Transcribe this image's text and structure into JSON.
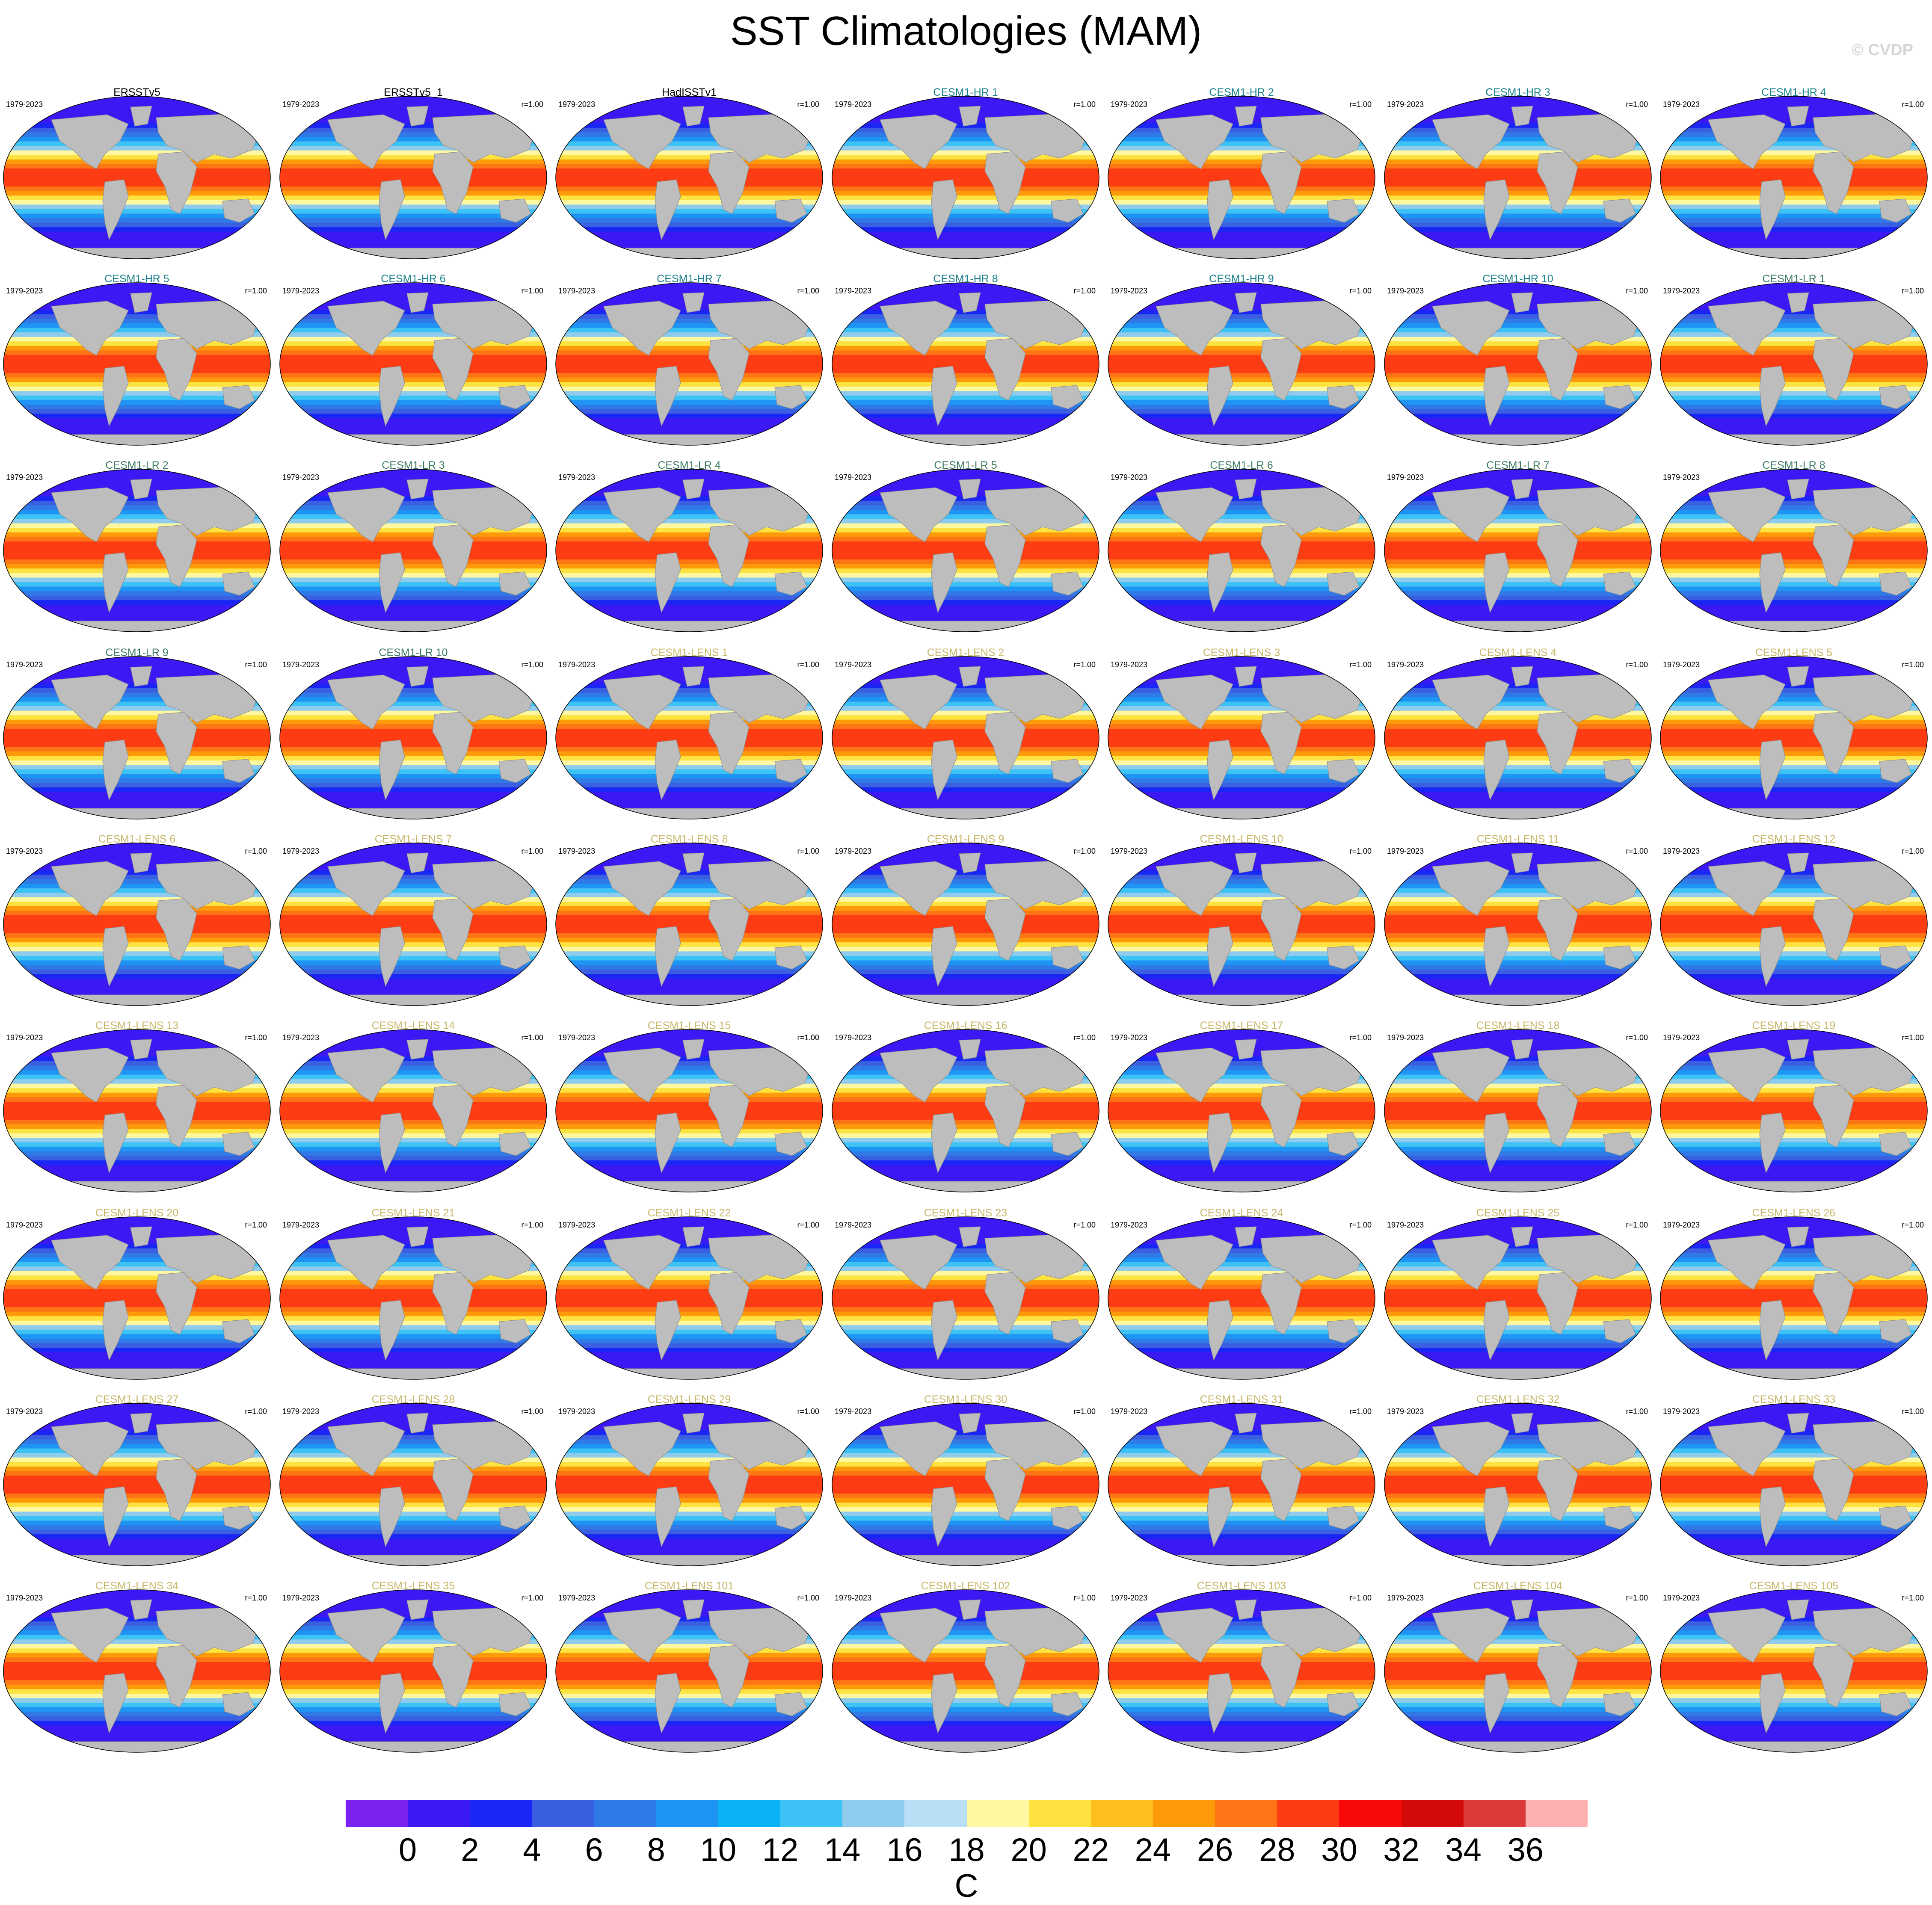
{
  "title": "SST Climatologies (MAM)",
  "credit": "© CVDP",
  "period": "1979-2023",
  "correlation": "r=1.00",
  "title_colors": {
    "observations": "#000000",
    "CESM1-HR": "#1a7f8a",
    "CESM1-LR": "#3d7a66",
    "CESM1-LENS": "#c7b76a"
  },
  "panels": [
    {
      "title": "ERSSTv5",
      "group": "observations",
      "show_r": false
    },
    {
      "title": "ERSSTv5_1",
      "group": "observations",
      "show_r": true
    },
    {
      "title": "HadISSTv1",
      "group": "observations",
      "show_r": true
    },
    {
      "title": "CESM1-HR 1",
      "group": "CESM1-HR",
      "show_r": true
    },
    {
      "title": "CESM1-HR 2",
      "group": "CESM1-HR",
      "show_r": true
    },
    {
      "title": "CESM1-HR 3",
      "group": "CESM1-HR",
      "show_r": true
    },
    {
      "title": "CESM1-HR 4",
      "group": "CESM1-HR",
      "show_r": true
    },
    {
      "title": "CESM1-HR 5",
      "group": "CESM1-HR",
      "show_r": true
    },
    {
      "title": "CESM1-HR 6",
      "group": "CESM1-HR",
      "show_r": true
    },
    {
      "title": "CESM1-HR 7",
      "group": "CESM1-HR",
      "show_r": true
    },
    {
      "title": "CESM1-HR 8",
      "group": "CESM1-HR",
      "show_r": true
    },
    {
      "title": "CESM1-HR 9",
      "group": "CESM1-HR",
      "show_r": true
    },
    {
      "title": "CESM1-HR 10",
      "group": "CESM1-HR",
      "show_r": true
    },
    {
      "title": "CESM1-LR 1",
      "group": "CESM1-LR",
      "show_r": true
    },
    {
      "title": "CESM1-LR 2",
      "group": "CESM1-LR",
      "show_r": false
    },
    {
      "title": "CESM1-LR 3",
      "group": "CESM1-LR",
      "show_r": false
    },
    {
      "title": "CESM1-LR 4",
      "group": "CESM1-LR",
      "show_r": false
    },
    {
      "title": "CESM1-LR 5",
      "group": "CESM1-LR",
      "show_r": false
    },
    {
      "title": "CESM1-LR 6",
      "group": "CESM1-LR",
      "show_r": false
    },
    {
      "title": "CESM1-LR 7",
      "group": "CESM1-LR",
      "show_r": false
    },
    {
      "title": "CESM1-LR 8",
      "group": "CESM1-LR",
      "show_r": false
    },
    {
      "title": "CESM1-LR 9",
      "group": "CESM1-LR",
      "show_r": true
    },
    {
      "title": "CESM1-LR 10",
      "group": "CESM1-LR",
      "show_r": true
    },
    {
      "title": "CESM1-LENS 1",
      "group": "CESM1-LENS",
      "show_r": true
    },
    {
      "title": "CESM1-LENS 2",
      "group": "CESM1-LENS",
      "show_r": true
    },
    {
      "title": "CESM1-LENS 3",
      "group": "CESM1-LENS",
      "show_r": true
    },
    {
      "title": "CESM1-LENS 4",
      "group": "CESM1-LENS",
      "show_r": true
    },
    {
      "title": "CESM1-LENS 5",
      "group": "CESM1-LENS",
      "show_r": true
    },
    {
      "title": "CESM1-LENS 6",
      "group": "CESM1-LENS",
      "show_r": true
    },
    {
      "title": "CESM1-LENS 7",
      "group": "CESM1-LENS",
      "show_r": true
    },
    {
      "title": "CESM1-LENS 8",
      "group": "CESM1-LENS",
      "show_r": true
    },
    {
      "title": "CESM1-LENS 9",
      "group": "CESM1-LENS",
      "show_r": true
    },
    {
      "title": "CESM1-LENS 10",
      "group": "CESM1-LENS",
      "show_r": true
    },
    {
      "title": "CESM1-LENS 11",
      "group": "CESM1-LENS",
      "show_r": true
    },
    {
      "title": "CESM1-LENS 12",
      "group": "CESM1-LENS",
      "show_r": true
    },
    {
      "title": "CESM1-LENS 13",
      "group": "CESM1-LENS",
      "show_r": true
    },
    {
      "title": "CESM1-LENS 14",
      "group": "CESM1-LENS",
      "show_r": true
    },
    {
      "title": "CESM1-LENS 15",
      "group": "CESM1-LENS",
      "show_r": true
    },
    {
      "title": "CESM1-LENS 16",
      "group": "CESM1-LENS",
      "show_r": true
    },
    {
      "title": "CESM1-LENS 17",
      "group": "CESM1-LENS",
      "show_r": true
    },
    {
      "title": "CESM1-LENS 18",
      "group": "CESM1-LENS",
      "show_r": true
    },
    {
      "title": "CESM1-LENS 19",
      "group": "CESM1-LENS",
      "show_r": true
    },
    {
      "title": "CESM1-LENS 20",
      "group": "CESM1-LENS",
      "show_r": true
    },
    {
      "title": "CESM1-LENS 21",
      "group": "CESM1-LENS",
      "show_r": true
    },
    {
      "title": "CESM1-LENS 22",
      "group": "CESM1-LENS",
      "show_r": true
    },
    {
      "title": "CESM1-LENS 23",
      "group": "CESM1-LENS",
      "show_r": true
    },
    {
      "title": "CESM1-LENS 24",
      "group": "CESM1-LENS",
      "show_r": true
    },
    {
      "title": "CESM1-LENS 25",
      "group": "CESM1-LENS",
      "show_r": true
    },
    {
      "title": "CESM1-LENS 26",
      "group": "CESM1-LENS",
      "show_r": true
    },
    {
      "title": "CESM1-LENS 27",
      "group": "CESM1-LENS",
      "show_r": true
    },
    {
      "title": "CESM1-LENS 28",
      "group": "CESM1-LENS",
      "show_r": true
    },
    {
      "title": "CESM1-LENS 29",
      "group": "CESM1-LENS",
      "show_r": true
    },
    {
      "title": "CESM1-LENS 30",
      "group": "CESM1-LENS",
      "show_r": true
    },
    {
      "title": "CESM1-LENS 31",
      "group": "CESM1-LENS",
      "show_r": true
    },
    {
      "title": "CESM1-LENS 32",
      "group": "CESM1-LENS",
      "show_r": true
    },
    {
      "title": "CESM1-LENS 33",
      "group": "CESM1-LENS",
      "show_r": true
    },
    {
      "title": "CESM1-LENS 34",
      "group": "CESM1-LENS",
      "show_r": true
    },
    {
      "title": "CESM1-LENS 35",
      "group": "CESM1-LENS",
      "show_r": true
    },
    {
      "title": "CESM1-LENS 101",
      "group": "CESM1-LENS",
      "show_r": true
    },
    {
      "title": "CESM1-LENS 102",
      "group": "CESM1-LENS",
      "show_r": true
    },
    {
      "title": "CESM1-LENS 103",
      "group": "CESM1-LENS",
      "show_r": true
    },
    {
      "title": "CESM1-LENS 104",
      "group": "CESM1-LENS",
      "show_r": true
    },
    {
      "title": "CESM1-LENS 105",
      "group": "CESM1-LENS",
      "show_r": true
    }
  ],
  "chart_data": {
    "type": "heatmap",
    "title": "SST Climatologies (MAM)",
    "projection": "global map",
    "grid_rows": 9,
    "grid_cols": 7,
    "colorbar": {
      "unit": "C",
      "levels": [
        0,
        2,
        4,
        6,
        8,
        10,
        12,
        14,
        16,
        18,
        20,
        22,
        24,
        26,
        28,
        30,
        32,
        34,
        36
      ],
      "tick_labels": [
        "0",
        "2",
        "4",
        "6",
        "8",
        "10",
        "12",
        "14",
        "16",
        "18",
        "20",
        "22",
        "24",
        "26",
        "28",
        "30",
        "32",
        "34",
        "36"
      ],
      "colors": [
        "#7a22f0",
        "#3b19f5",
        "#1a26f5",
        "#3a5fe0",
        "#2f7ae6",
        "#1e94f5",
        "#08b2f5",
        "#3cc2f5",
        "#8fcbec",
        "#b9dff6",
        "#fff8a0",
        "#fde240",
        "#fdbe1e",
        "#fd9a0a",
        "#fd7514",
        "#fd3c14",
        "#f80a0a",
        "#d20a0a",
        "#dc3a3a",
        "#fdb0b0"
      ]
    },
    "land_color": "#bdbdbd",
    "sea_ice_color": "#ffffff"
  }
}
